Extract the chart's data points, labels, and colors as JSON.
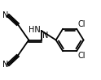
{
  "bg_color": "#ffffff",
  "bond_color": "#000000",
  "text_color": "#000000",
  "bond_lw": 1.3,
  "font_size": 7,
  "xlim": [
    0.0,
    1.18
  ],
  "ylim": [
    0.0,
    1.0
  ]
}
